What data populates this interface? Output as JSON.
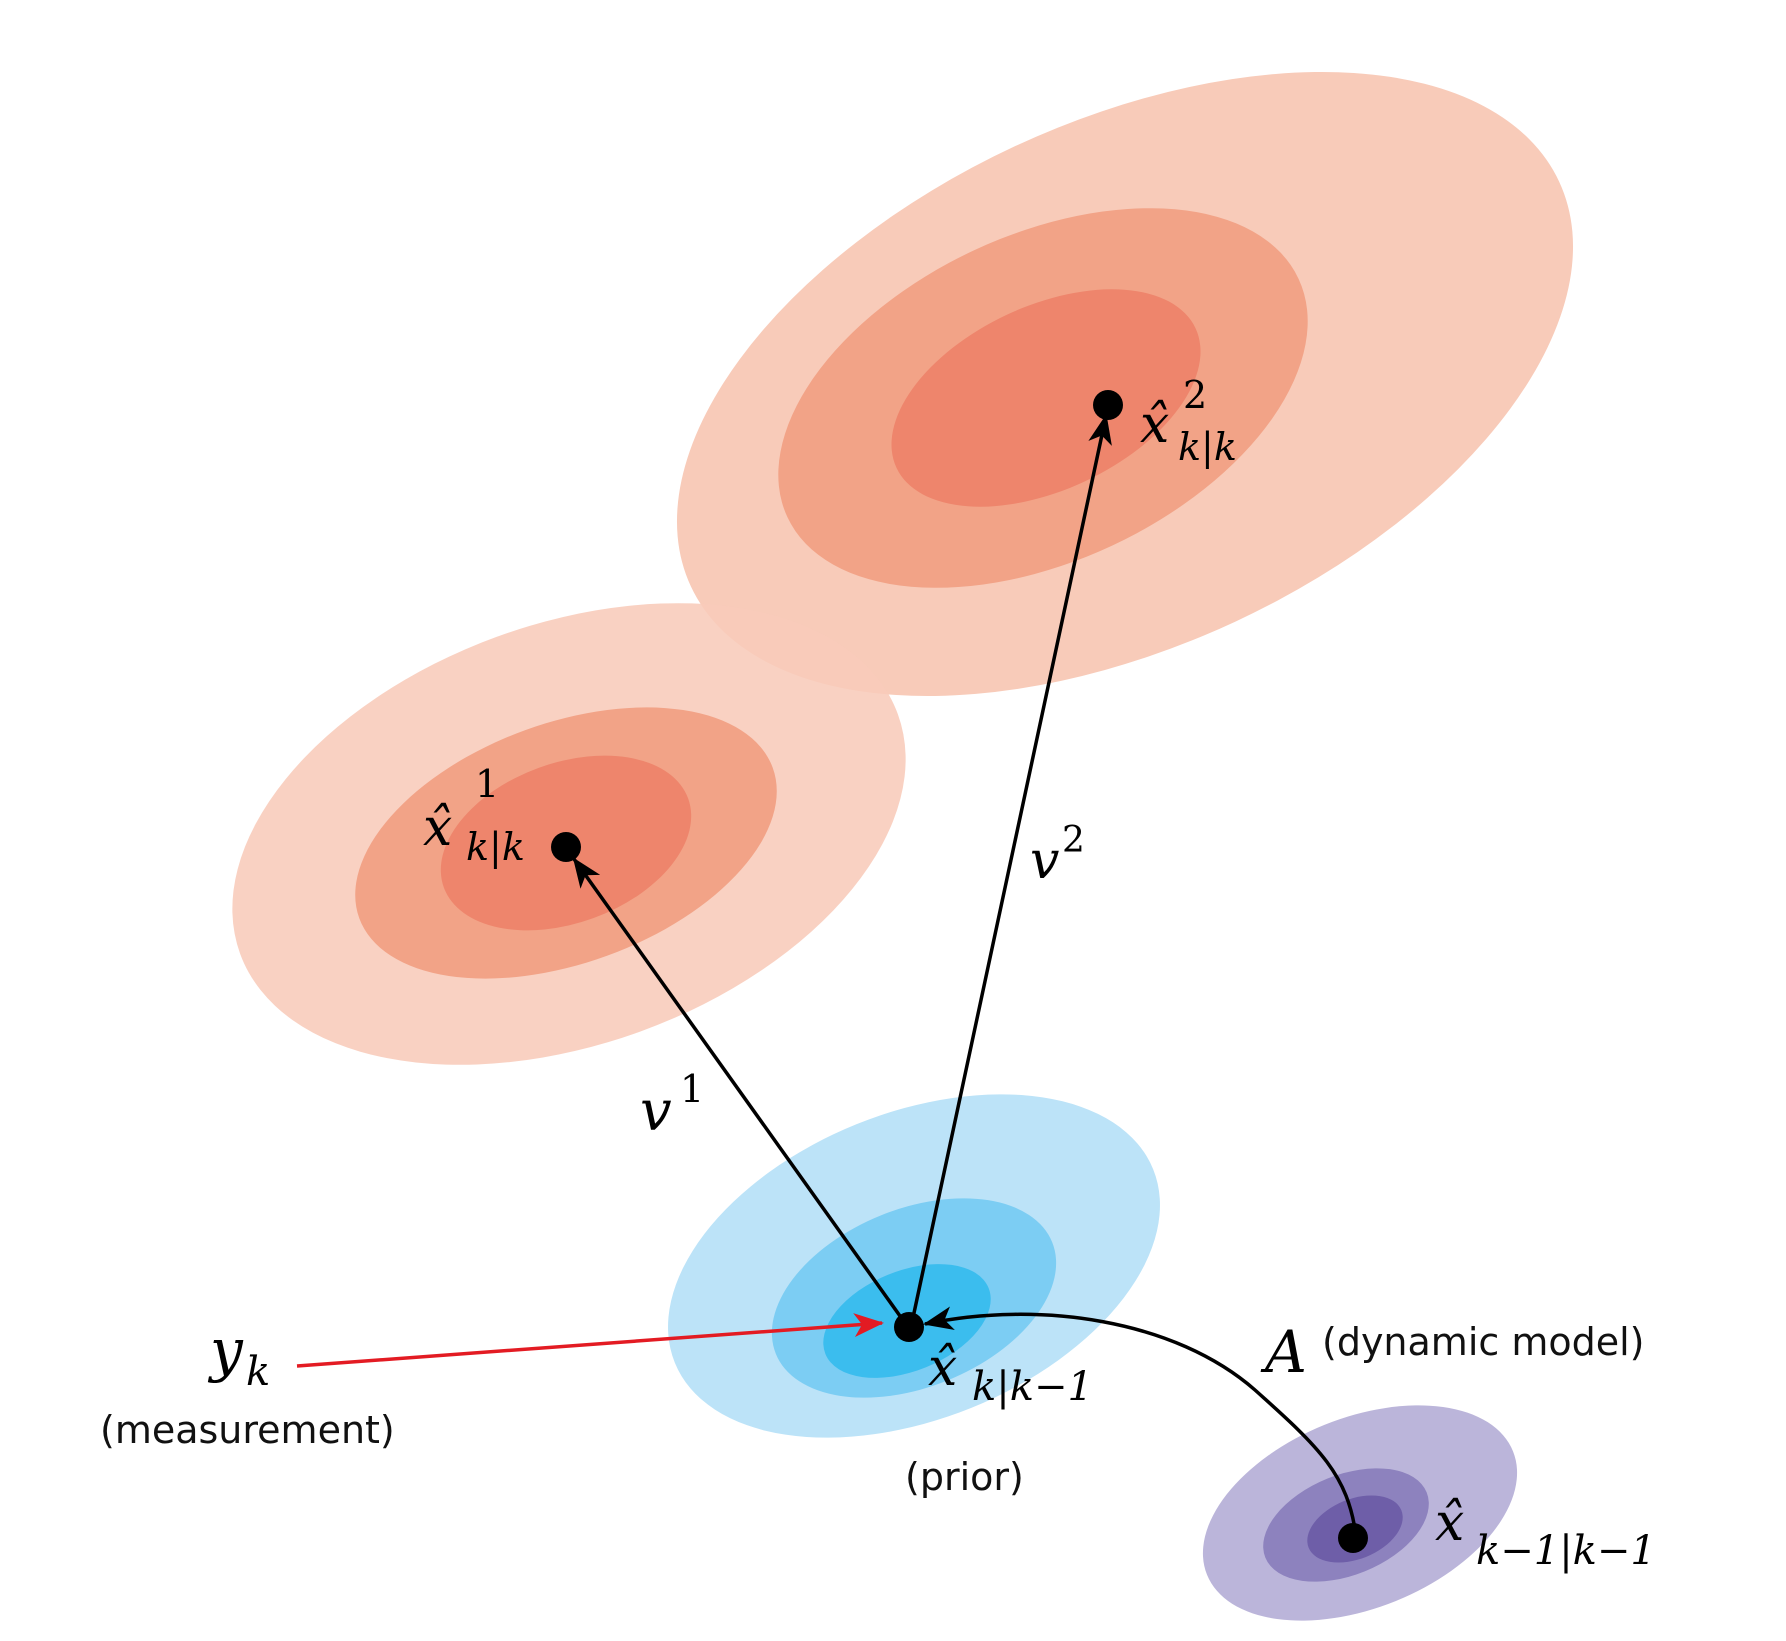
{
  "colors": {
    "posterior_outer": "#f8cbb9",
    "posterior_mid": "#f2a387",
    "posterior_inner": "#ee856c",
    "prior_outer": "#bce3f8",
    "prior_mid": "#7ccdf3",
    "prior_inner": "#3bbdee",
    "previous_outer": "#bbb5da",
    "previous_mid": "#8d82be",
    "previous_inner": "#6e5ea8",
    "arrow_black": "#000000",
    "arrow_measurement": "#e31b23"
  },
  "labels": {
    "posterior2": {
      "base": "x̂",
      "sub": "k|k",
      "sup": "2"
    },
    "posterior1": {
      "base": "x̂",
      "sub": "k|k",
      "sup": "1"
    },
    "innovation2": {
      "base": "v",
      "sup": "2"
    },
    "innovation1": {
      "base": "v",
      "sup": "1"
    },
    "prior": {
      "base": "x̂",
      "sub": "k|k−1",
      "caption": "(prior)"
    },
    "previous": {
      "base": "x̂",
      "sub": "k−1|k−1"
    },
    "dynamic_model": {
      "symbol": "A",
      "caption": "(dynamic model)"
    },
    "measurement": {
      "base": "y",
      "sub": "k",
      "caption": "(measurement)"
    }
  }
}
